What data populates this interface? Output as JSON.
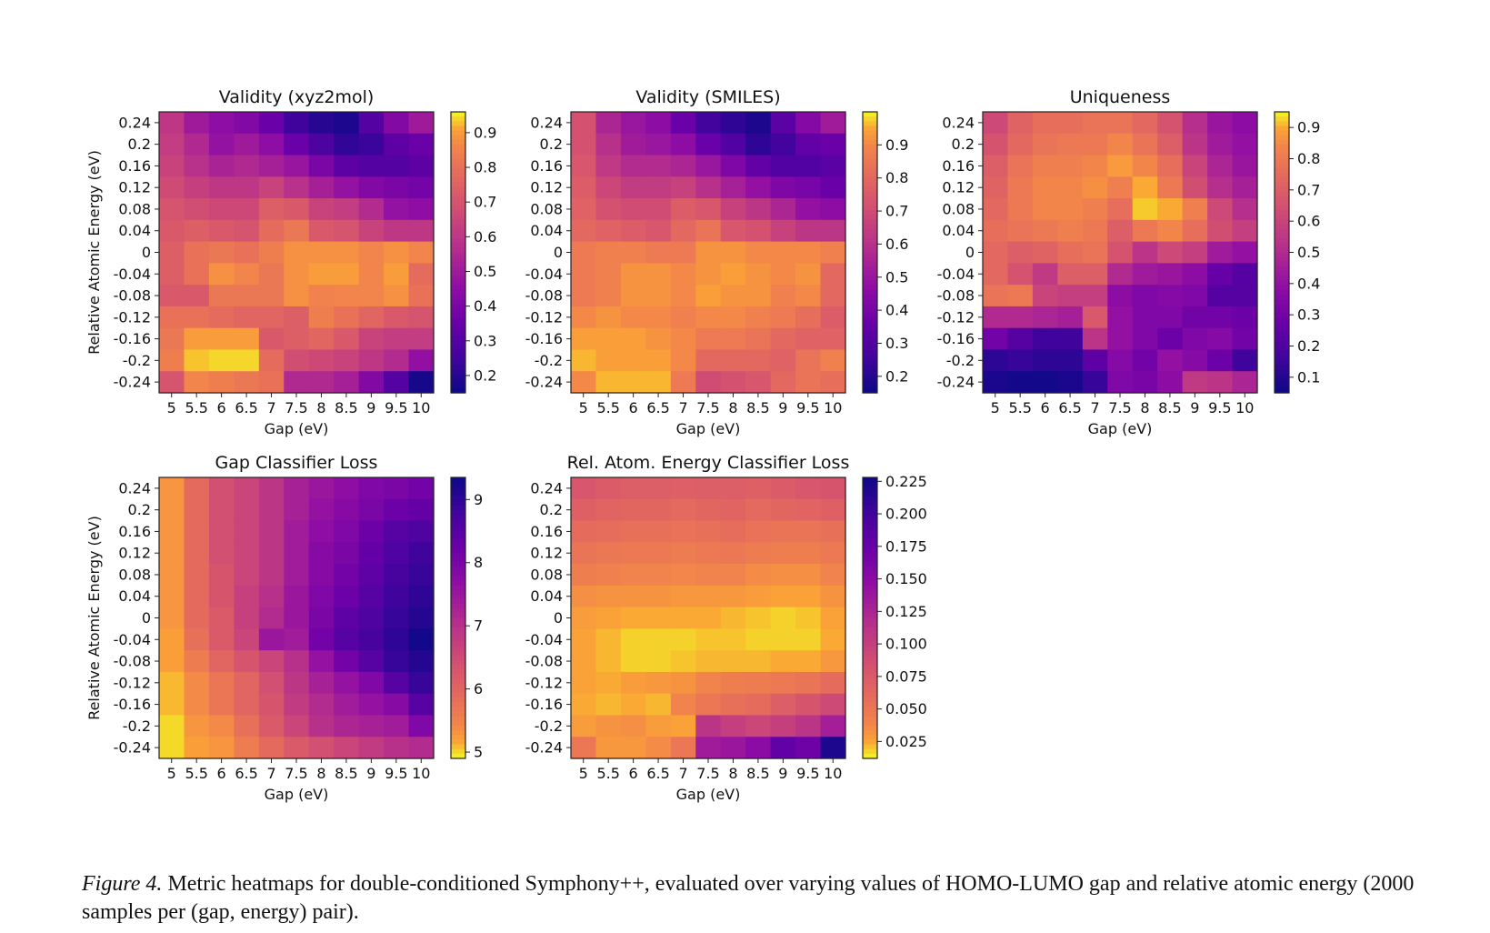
{
  "caption": {
    "label": "Figure 4.",
    "text": " Metric heatmaps for double-conditioned Symphony++, evaluated over varying values of HOMO-LUMO gap and relative atomic energy (2000 samples per (gap, energy) pair)."
  },
  "shared_axes": {
    "x_ticks": [
      "5",
      "5.5",
      "6",
      "6.5",
      "7",
      "7.5",
      "8",
      "8.5",
      "9",
      "9.5",
      "10"
    ],
    "y_ticks": [
      "0.24",
      "0.2",
      "0.16",
      "0.12",
      "0.08",
      "0.04",
      "0",
      "-0.04",
      "-0.08",
      "-0.12",
      "-0.16",
      "-0.2",
      "-0.24"
    ]
  },
  "chart_data": [
    {
      "type": "heatmap",
      "title": "Validity (xyz2mol)",
      "xlabel": "Gap (eV)",
      "ylabel": "Relative Atomic Energy (eV)",
      "colormap": "plasma",
      "vmin": 0.15,
      "vmax": 0.96,
      "colorbar_ticks": [
        "0.2",
        "0.3",
        "0.4",
        "0.5",
        "0.6",
        "0.7",
        "0.8",
        "0.9"
      ],
      "values": [
        [
          0.6,
          0.5,
          0.45,
          0.42,
          0.35,
          0.25,
          0.2,
          0.18,
          0.3,
          0.42,
          0.5
        ],
        [
          0.62,
          0.55,
          0.47,
          0.5,
          0.45,
          0.35,
          0.28,
          0.22,
          0.24,
          0.32,
          0.35
        ],
        [
          0.64,
          0.58,
          0.53,
          0.55,
          0.52,
          0.48,
          0.4,
          0.32,
          0.3,
          0.3,
          0.32
        ],
        [
          0.67,
          0.63,
          0.6,
          0.6,
          0.64,
          0.58,
          0.52,
          0.47,
          0.42,
          0.4,
          0.38
        ],
        [
          0.7,
          0.68,
          0.66,
          0.66,
          0.74,
          0.72,
          0.64,
          0.62,
          0.56,
          0.47,
          0.45
        ],
        [
          0.72,
          0.74,
          0.72,
          0.7,
          0.78,
          0.82,
          0.72,
          0.7,
          0.64,
          0.6,
          0.6
        ],
        [
          0.74,
          0.8,
          0.82,
          0.8,
          0.84,
          0.88,
          0.88,
          0.88,
          0.86,
          0.88,
          0.86
        ],
        [
          0.74,
          0.8,
          0.88,
          0.86,
          0.82,
          0.88,
          0.9,
          0.9,
          0.86,
          0.9,
          0.78
        ],
        [
          0.72,
          0.72,
          0.82,
          0.82,
          0.82,
          0.88,
          0.85,
          0.86,
          0.86,
          0.88,
          0.8
        ],
        [
          0.8,
          0.8,
          0.78,
          0.76,
          0.76,
          0.74,
          0.84,
          0.8,
          0.76,
          0.72,
          0.7
        ],
        [
          0.82,
          0.9,
          0.9,
          0.9,
          0.72,
          0.74,
          0.76,
          0.72,
          0.64,
          0.62,
          0.62
        ],
        [
          0.84,
          0.93,
          0.94,
          0.94,
          0.78,
          0.68,
          0.66,
          0.64,
          0.6,
          0.56,
          0.46
        ],
        [
          0.7,
          0.86,
          0.84,
          0.82,
          0.8,
          0.55,
          0.55,
          0.52,
          0.42,
          0.3,
          0.17
        ]
      ]
    },
    {
      "type": "heatmap",
      "title": "Validity (SMILES)",
      "xlabel": "Gap (eV)",
      "ylabel": "",
      "colormap": "plasma",
      "vmin": 0.15,
      "vmax": 1.0,
      "colorbar_ticks": [
        "0.2",
        "0.3",
        "0.4",
        "0.5",
        "0.6",
        "0.7",
        "0.8",
        "0.9"
      ],
      "values": [
        [
          0.72,
          0.56,
          0.5,
          0.46,
          0.36,
          0.26,
          0.22,
          0.18,
          0.32,
          0.44,
          0.52
        ],
        [
          0.72,
          0.6,
          0.52,
          0.5,
          0.46,
          0.36,
          0.3,
          0.22,
          0.26,
          0.34,
          0.36
        ],
        [
          0.74,
          0.63,
          0.58,
          0.58,
          0.56,
          0.5,
          0.42,
          0.34,
          0.3,
          0.3,
          0.32
        ],
        [
          0.76,
          0.68,
          0.64,
          0.64,
          0.66,
          0.6,
          0.54,
          0.48,
          0.42,
          0.4,
          0.36
        ],
        [
          0.78,
          0.72,
          0.7,
          0.7,
          0.76,
          0.74,
          0.66,
          0.62,
          0.56,
          0.48,
          0.46
        ],
        [
          0.8,
          0.78,
          0.76,
          0.74,
          0.8,
          0.84,
          0.74,
          0.72,
          0.66,
          0.62,
          0.62
        ],
        [
          0.86,
          0.88,
          0.88,
          0.86,
          0.86,
          0.92,
          0.92,
          0.9,
          0.9,
          0.9,
          0.88
        ],
        [
          0.86,
          0.88,
          0.92,
          0.92,
          0.9,
          0.92,
          0.94,
          0.92,
          0.9,
          0.92,
          0.8
        ],
        [
          0.86,
          0.88,
          0.92,
          0.92,
          0.9,
          0.94,
          0.92,
          0.92,
          0.88,
          0.9,
          0.8
        ],
        [
          0.9,
          0.92,
          0.9,
          0.9,
          0.88,
          0.9,
          0.9,
          0.88,
          0.86,
          0.82,
          0.76
        ],
        [
          0.94,
          0.94,
          0.94,
          0.92,
          0.9,
          0.86,
          0.86,
          0.84,
          0.8,
          0.78,
          0.78
        ],
        [
          0.96,
          0.94,
          0.94,
          0.94,
          0.9,
          0.8,
          0.8,
          0.8,
          0.78,
          0.84,
          0.88
        ],
        [
          0.9,
          0.96,
          0.96,
          0.96,
          0.86,
          0.7,
          0.72,
          0.74,
          0.8,
          0.84,
          0.82
        ]
      ]
    },
    {
      "type": "heatmap",
      "title": "Uniqueness",
      "xlabel": "Gap (eV)",
      "ylabel": "",
      "colormap": "plasma",
      "vmin": 0.05,
      "vmax": 0.95,
      "colorbar_ticks": [
        "0.1",
        "0.2",
        "0.3",
        "0.4",
        "0.5",
        "0.6",
        "0.7",
        "0.8",
        "0.9"
      ],
      "values": [
        [
          0.62,
          0.72,
          0.76,
          0.76,
          0.78,
          0.78,
          0.74,
          0.66,
          0.52,
          0.42,
          0.38
        ],
        [
          0.66,
          0.74,
          0.78,
          0.8,
          0.8,
          0.84,
          0.78,
          0.7,
          0.54,
          0.44,
          0.4
        ],
        [
          0.7,
          0.78,
          0.82,
          0.82,
          0.84,
          0.88,
          0.84,
          0.76,
          0.6,
          0.48,
          0.42
        ],
        [
          0.72,
          0.8,
          0.84,
          0.84,
          0.86,
          0.82,
          0.9,
          0.8,
          0.64,
          0.52,
          0.46
        ],
        [
          0.74,
          0.8,
          0.84,
          0.84,
          0.82,
          0.76,
          0.92,
          0.9,
          0.82,
          0.62,
          0.52
        ],
        [
          0.76,
          0.78,
          0.8,
          0.82,
          0.8,
          0.7,
          0.8,
          0.84,
          0.76,
          0.64,
          0.58
        ],
        [
          0.74,
          0.7,
          0.72,
          0.76,
          0.78,
          0.66,
          0.54,
          0.62,
          0.58,
          0.44,
          0.4
        ],
        [
          0.74,
          0.66,
          0.56,
          0.7,
          0.7,
          0.5,
          0.44,
          0.42,
          0.38,
          0.26,
          0.22
        ],
        [
          0.78,
          0.8,
          0.6,
          0.58,
          0.58,
          0.38,
          0.34,
          0.36,
          0.34,
          0.22,
          0.22
        ],
        [
          0.5,
          0.5,
          0.48,
          0.46,
          0.68,
          0.4,
          0.34,
          0.34,
          0.3,
          0.3,
          0.28
        ],
        [
          0.3,
          0.22,
          0.16,
          0.16,
          0.54,
          0.4,
          0.34,
          0.28,
          0.34,
          0.36,
          0.3
        ],
        [
          0.12,
          0.14,
          0.12,
          0.12,
          0.24,
          0.36,
          0.3,
          0.4,
          0.36,
          0.28,
          0.16
        ],
        [
          0.08,
          0.06,
          0.06,
          0.08,
          0.14,
          0.34,
          0.32,
          0.38,
          0.56,
          0.54,
          0.48
        ]
      ]
    },
    {
      "type": "heatmap",
      "title": "Gap Classifier Loss",
      "xlabel": "Gap (eV)",
      "ylabel": "Relative Atomic Energy (eV)",
      "colormap": "plasma_r",
      "vmin": 4.9,
      "vmax": 9.35,
      "colorbar_ticks": [
        "5",
        "6",
        "7",
        "8",
        "9"
      ],
      "values": [
        [
          5.3,
          5.9,
          6.4,
          6.6,
          6.9,
          7.3,
          7.5,
          7.7,
          7.9,
          8.0,
          8.1
        ],
        [
          5.3,
          5.9,
          6.4,
          6.6,
          6.9,
          7.3,
          7.6,
          7.8,
          8.0,
          8.2,
          8.3
        ],
        [
          5.3,
          5.9,
          6.4,
          6.6,
          6.9,
          7.4,
          7.7,
          7.9,
          8.2,
          8.5,
          8.6
        ],
        [
          5.3,
          5.9,
          6.4,
          6.6,
          6.9,
          7.4,
          7.8,
          8.0,
          8.3,
          8.6,
          8.8
        ],
        [
          5.3,
          5.9,
          6.3,
          6.6,
          6.9,
          7.4,
          7.8,
          8.1,
          8.4,
          8.7,
          8.9
        ],
        [
          5.3,
          5.9,
          6.3,
          6.7,
          7.0,
          7.5,
          7.9,
          8.2,
          8.5,
          8.8,
          9.0
        ],
        [
          5.3,
          5.9,
          6.2,
          6.7,
          7.1,
          7.5,
          8.0,
          8.4,
          8.6,
          8.9,
          9.1
        ],
        [
          5.2,
          5.8,
          6.2,
          6.6,
          7.5,
          7.4,
          8.1,
          8.5,
          8.7,
          9.0,
          9.3
        ],
        [
          5.2,
          5.6,
          6.0,
          6.3,
          6.6,
          7.0,
          7.6,
          8.1,
          8.5,
          8.9,
          9.1
        ],
        [
          5.1,
          5.4,
          5.7,
          6.0,
          6.4,
          6.9,
          7.3,
          7.6,
          7.9,
          8.5,
          8.9
        ],
        [
          5.1,
          5.4,
          5.7,
          6.0,
          6.3,
          6.8,
          7.1,
          7.4,
          7.6,
          7.8,
          8.5
        ],
        [
          5.0,
          5.3,
          5.4,
          5.8,
          6.2,
          6.6,
          7.0,
          7.2,
          7.3,
          7.4,
          7.9
        ],
        [
          5.0,
          5.2,
          5.3,
          5.6,
          5.9,
          6.2,
          6.4,
          6.6,
          6.8,
          7.0,
          7.1
        ]
      ]
    },
    {
      "type": "heatmap",
      "title": "Rel. Atom. Energy Classifier Loss",
      "xlabel": "Gap (eV)",
      "ylabel": "",
      "colormap": "plasma_r",
      "vmin": 0.012,
      "vmax": 0.228,
      "colorbar_ticks": [
        "0.025",
        "0.050",
        "0.075",
        "0.100",
        "0.125",
        "0.150",
        "0.175",
        "0.200",
        "0.225"
      ],
      "values": [
        [
          0.078,
          0.074,
          0.072,
          0.072,
          0.07,
          0.072,
          0.072,
          0.07,
          0.074,
          0.078,
          0.08
        ],
        [
          0.07,
          0.066,
          0.064,
          0.064,
          0.062,
          0.064,
          0.066,
          0.062,
          0.064,
          0.066,
          0.07
        ],
        [
          0.06,
          0.058,
          0.056,
          0.056,
          0.054,
          0.056,
          0.058,
          0.054,
          0.052,
          0.052,
          0.056
        ],
        [
          0.052,
          0.05,
          0.048,
          0.048,
          0.046,
          0.048,
          0.05,
          0.046,
          0.044,
          0.044,
          0.048
        ],
        [
          0.044,
          0.042,
          0.04,
          0.04,
          0.038,
          0.04,
          0.04,
          0.036,
          0.034,
          0.034,
          0.04
        ],
        [
          0.034,
          0.032,
          0.032,
          0.032,
          0.03,
          0.03,
          0.03,
          0.028,
          0.026,
          0.026,
          0.032
        ],
        [
          0.028,
          0.026,
          0.024,
          0.024,
          0.024,
          0.024,
          0.022,
          0.02,
          0.018,
          0.02,
          0.026
        ],
        [
          0.026,
          0.022,
          0.018,
          0.018,
          0.018,
          0.02,
          0.02,
          0.018,
          0.018,
          0.018,
          0.024
        ],
        [
          0.026,
          0.022,
          0.018,
          0.018,
          0.02,
          0.022,
          0.022,
          0.022,
          0.024,
          0.024,
          0.03
        ],
        [
          0.026,
          0.024,
          0.028,
          0.03,
          0.032,
          0.04,
          0.044,
          0.046,
          0.048,
          0.052,
          0.06
        ],
        [
          0.024,
          0.022,
          0.024,
          0.022,
          0.04,
          0.05,
          0.056,
          0.06,
          0.072,
          0.08,
          0.09
        ],
        [
          0.028,
          0.032,
          0.034,
          0.028,
          0.026,
          0.11,
          0.1,
          0.094,
          0.1,
          0.11,
          0.13
        ],
        [
          0.05,
          0.03,
          0.03,
          0.036,
          0.05,
          0.134,
          0.138,
          0.15,
          0.18,
          0.17,
          0.22
        ]
      ]
    }
  ]
}
